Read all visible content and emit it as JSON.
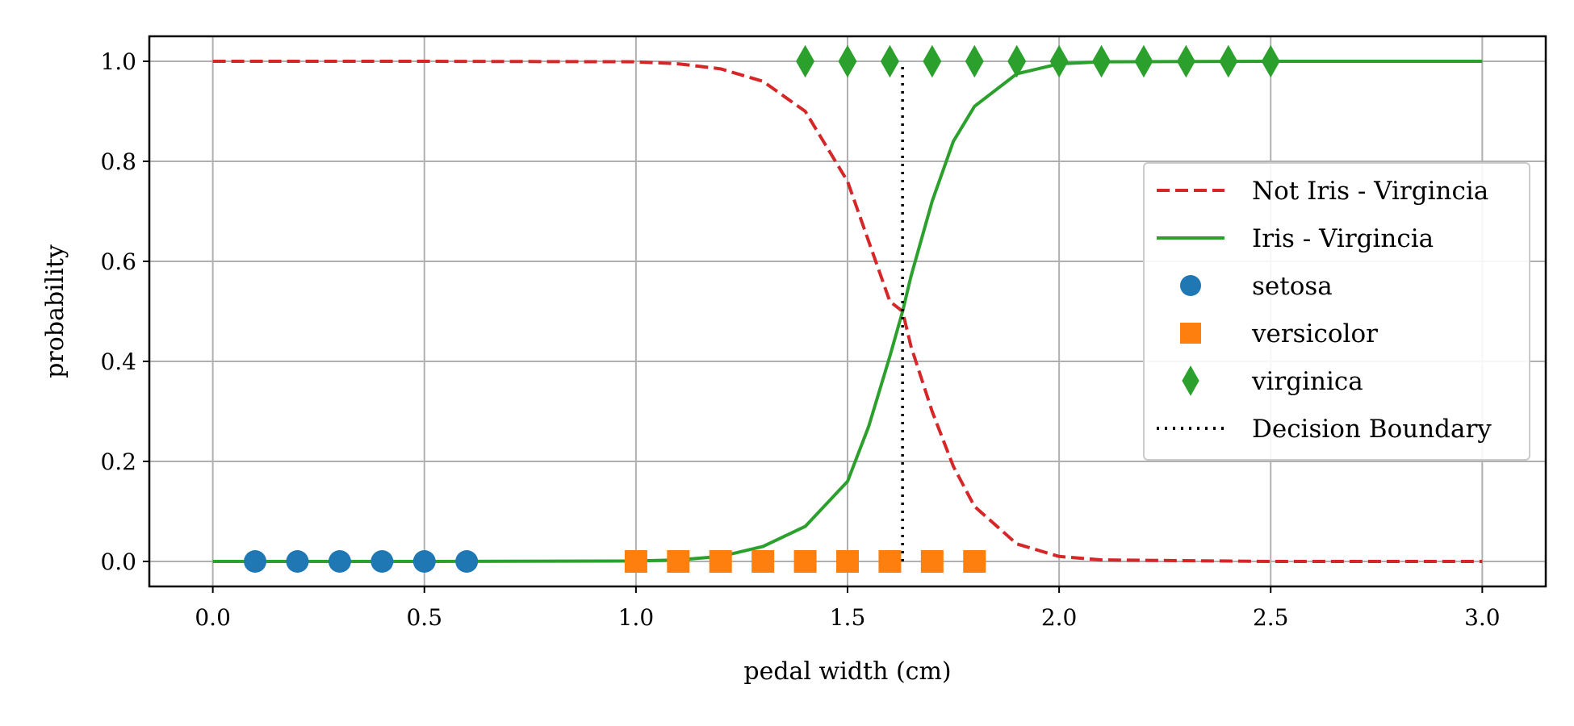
{
  "chart_data": {
    "type": "line",
    "title": "",
    "xlabel": "pedal width (cm)",
    "ylabel": "probability",
    "xlim": [
      -0.15,
      3.15
    ],
    "ylim": [
      -0.05,
      1.05
    ],
    "xticks": [
      0.0,
      0.5,
      1.0,
      1.5,
      2.0,
      2.5,
      3.0
    ],
    "xtick_labels": [
      "0.0",
      "0.5",
      "1.0",
      "1.5",
      "2.0",
      "2.5",
      "3.0"
    ],
    "yticks": [
      0.0,
      0.2,
      0.4,
      0.6,
      0.8,
      1.0
    ],
    "ytick_labels": [
      "0.0",
      "0.2",
      "0.4",
      "0.6",
      "0.8",
      "1.0"
    ],
    "grid": true,
    "legend_position": "center-right",
    "curves": [
      {
        "name": "Not Iris - Virgincia",
        "style": "dashed",
        "color": "#d62728",
        "x": [
          0.0,
          0.5,
          1.0,
          1.1,
          1.2,
          1.3,
          1.4,
          1.5,
          1.55,
          1.6,
          1.63,
          1.65,
          1.7,
          1.75,
          1.8,
          1.9,
          2.0,
          2.1,
          2.5,
          3.0
        ],
        "y": [
          1.0,
          1.0,
          0.999,
          0.995,
          0.985,
          0.96,
          0.9,
          0.76,
          0.64,
          0.52,
          0.5,
          0.43,
          0.3,
          0.19,
          0.11,
          0.035,
          0.01,
          0.003,
          0.0,
          0.0
        ]
      },
      {
        "name": "Iris - Virgincia",
        "style": "solid",
        "color": "#2ca02c",
        "x": [
          0.0,
          0.5,
          1.0,
          1.1,
          1.2,
          1.3,
          1.4,
          1.5,
          1.55,
          1.6,
          1.63,
          1.65,
          1.7,
          1.75,
          1.8,
          1.9,
          2.0,
          2.1,
          2.5,
          3.0
        ],
        "y": [
          0.0,
          0.0,
          0.001,
          0.003,
          0.01,
          0.03,
          0.07,
          0.16,
          0.27,
          0.41,
          0.5,
          0.57,
          0.72,
          0.84,
          0.91,
          0.975,
          0.995,
          0.999,
          1.0,
          1.0
        ]
      }
    ],
    "scatter_series": [
      {
        "name": "setosa",
        "marker": "circle",
        "color": "#1f77b4",
        "x": [
          0.1,
          0.2,
          0.3,
          0.4,
          0.5,
          0.6
        ],
        "y": [
          0,
          0,
          0,
          0,
          0,
          0
        ]
      },
      {
        "name": "versicolor",
        "marker": "square",
        "color": "#ff7f0e",
        "x": [
          1.0,
          1.1,
          1.2,
          1.3,
          1.4,
          1.5,
          1.6,
          1.7,
          1.8
        ],
        "y": [
          0,
          0,
          0,
          0,
          0,
          0,
          0,
          0,
          0
        ]
      },
      {
        "name": "virginica",
        "marker": "diamond",
        "color": "#2ca02c",
        "x": [
          1.4,
          1.5,
          1.6,
          1.7,
          1.8,
          1.9,
          2.0,
          2.1,
          2.2,
          2.3,
          2.4,
          2.5
        ],
        "y": [
          1,
          1,
          1,
          1,
          1,
          1,
          1,
          1,
          1,
          1,
          1,
          1
        ]
      }
    ],
    "decision_boundary": {
      "name": "Decision Boundary",
      "style": "dotted",
      "color": "#000000",
      "x": 1.63,
      "y": [
        0.0,
        1.0
      ]
    },
    "legend": [
      {
        "label": "Not Iris - Virgincia",
        "kind": "line",
        "style": "dashed",
        "color": "#d62728"
      },
      {
        "label": "Iris - Virgincia",
        "kind": "line",
        "style": "solid",
        "color": "#2ca02c"
      },
      {
        "label": "setosa",
        "kind": "marker",
        "marker": "circle",
        "color": "#1f77b4"
      },
      {
        "label": "versicolor",
        "kind": "marker",
        "marker": "square",
        "color": "#ff7f0e"
      },
      {
        "label": "virginica",
        "kind": "marker",
        "marker": "diamond",
        "color": "#2ca02c"
      },
      {
        "label": "Decision Boundary",
        "kind": "line",
        "style": "dotted",
        "color": "#000000"
      }
    ]
  }
}
